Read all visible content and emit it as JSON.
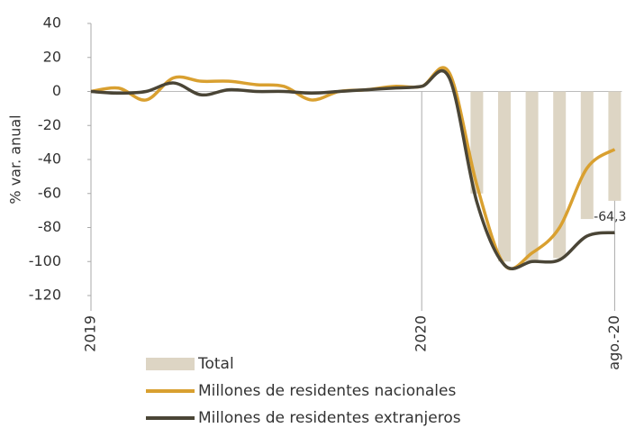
{
  "chart_data": {
    "type": "bar-line",
    "y_label": "% var. anual",
    "categories": [
      "2019",
      null,
      null,
      null,
      null,
      null,
      null,
      null,
      null,
      null,
      null,
      null,
      "2020",
      null,
      null,
      null,
      null,
      null,
      null,
      "ago.-20"
    ],
    "series": [
      {
        "name": "Total",
        "type": "bar",
        "color": "#ddd5c4",
        "values": [
          null,
          null,
          null,
          null,
          null,
          null,
          null,
          null,
          null,
          null,
          null,
          null,
          null,
          null,
          -60,
          -100,
          -100,
          -98,
          -75,
          -64.3
        ],
        "value_labels": [
          null,
          null,
          null,
          null,
          null,
          null,
          null,
          null,
          null,
          null,
          null,
          null,
          null,
          null,
          null,
          null,
          null,
          null,
          null,
          "-64,3"
        ]
      },
      {
        "name": "Millones de residentes nacionales",
        "type": "line",
        "color": "#d9a030",
        "values": [
          0,
          2,
          -5,
          8,
          6,
          6,
          4,
          3,
          -5,
          0,
          1,
          3,
          3,
          11,
          -55,
          -102,
          -95,
          -80,
          -45,
          -34
        ]
      },
      {
        "name": "Millones de residentes extranjeros",
        "type": "line",
        "color": "#4a4536",
        "values": [
          0,
          -1,
          0,
          5,
          -2,
          1,
          0,
          0,
          -1,
          0,
          1,
          2,
          3,
          8,
          -65,
          -102,
          -100,
          -99,
          -85,
          -83
        ]
      }
    ],
    "ylim": [
      -120,
      40
    ],
    "yticks": [
      -120,
      -100,
      -80,
      -60,
      -40,
      -20,
      0,
      20,
      40
    ]
  }
}
